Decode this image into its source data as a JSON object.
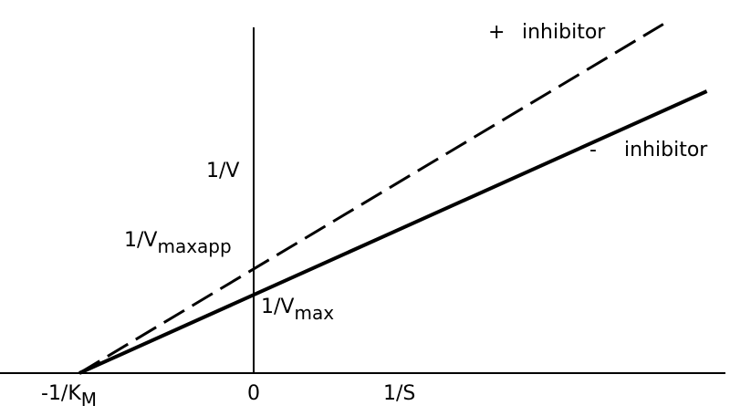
{
  "chart_data": {
    "type": "line",
    "title": "",
    "xlabel": "1/S",
    "ylabel": "1/V",
    "origin_label": "0",
    "x_intercept_label": {
      "main": "-1/K",
      "sub": "M"
    },
    "ylim": [
      0,
      12.2
    ],
    "xlim": [
      -1.0,
      2.7
    ],
    "series": [
      {
        "name": "inhibitor",
        "sign": "-",
        "style": "solid",
        "x": [
          -1.0,
          2.6
        ],
        "y": [
          0,
          10.3
        ],
        "y_intercept_label": {
          "main": "1/V",
          "sub": "max"
        }
      },
      {
        "name": "inhibitor",
        "sign": "+",
        "style": "dashed",
        "x": [
          -1.0,
          2.35
        ],
        "y": [
          0,
          12.75
        ],
        "y_intercept_label": {
          "main": "1/V",
          "sub": "maxapp"
        }
      }
    ],
    "grid": false
  },
  "colors": {
    "line": "#000000",
    "background": "#ffffff"
  }
}
